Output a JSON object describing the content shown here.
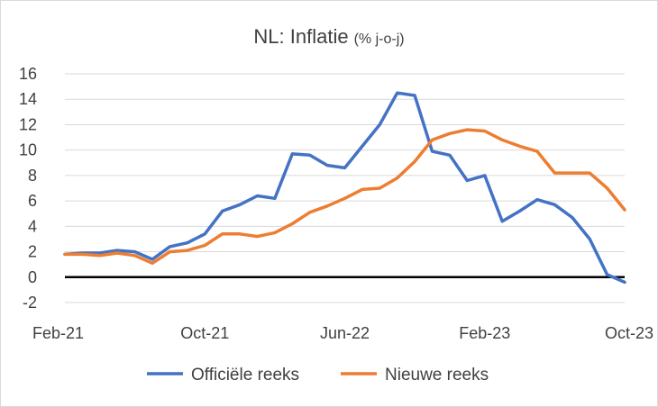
{
  "chart_data": {
    "type": "line",
    "title": "NL: Inflatie",
    "subtitle": "(% j-o-j)",
    "xlabel": "",
    "ylabel": "",
    "ylim": [
      -2,
      16
    ],
    "y_ticks": [
      16,
      14,
      12,
      10,
      8,
      6,
      4,
      2,
      0,
      -2
    ],
    "x_tick_labels": [
      "Feb-21",
      "Oct-21",
      "Jun-22",
      "Feb-23",
      "Oct-23"
    ],
    "x": [
      "Feb-21",
      "Mar-21",
      "Apr-21",
      "May-21",
      "Jun-21",
      "Jul-21",
      "Aug-21",
      "Sep-21",
      "Oct-21",
      "Nov-21",
      "Dec-21",
      "Jan-22",
      "Feb-22",
      "Mar-22",
      "Apr-22",
      "May-22",
      "Jun-22",
      "Jul-22",
      "Aug-22",
      "Sep-22",
      "Oct-22",
      "Nov-22",
      "Dec-22",
      "Jan-23",
      "Feb-23",
      "Mar-23",
      "Apr-23",
      "May-23",
      "Jun-23",
      "Jul-23",
      "Aug-23",
      "Sep-23",
      "Oct-23"
    ],
    "zero_line": true,
    "grid": "horizontal",
    "legend_position": "bottom",
    "series": [
      {
        "name": "Officiële reeks",
        "color": "#4472C4",
        "values": [
          1.8,
          1.9,
          1.9,
          2.1,
          2.0,
          1.4,
          2.4,
          2.7,
          3.4,
          5.2,
          5.7,
          6.4,
          6.2,
          9.7,
          9.6,
          8.8,
          8.6,
          10.3,
          12.0,
          14.5,
          14.3,
          9.9,
          9.6,
          7.6,
          8.0,
          4.4,
          5.2,
          6.1,
          5.7,
          4.7,
          3.0,
          0.2,
          -0.4
        ]
      },
      {
        "name": "Nieuwe reeks",
        "color": "#ED7D31",
        "values": [
          1.8,
          1.8,
          1.7,
          1.9,
          1.7,
          1.1,
          2.0,
          2.1,
          2.5,
          3.4,
          3.4,
          3.2,
          3.5,
          4.2,
          5.1,
          5.6,
          6.2,
          6.9,
          7.0,
          7.8,
          9.1,
          10.8,
          11.3,
          11.6,
          11.5,
          10.8,
          10.3,
          9.9,
          8.2,
          8.2,
          8.2,
          7.0,
          5.3
        ]
      }
    ]
  }
}
